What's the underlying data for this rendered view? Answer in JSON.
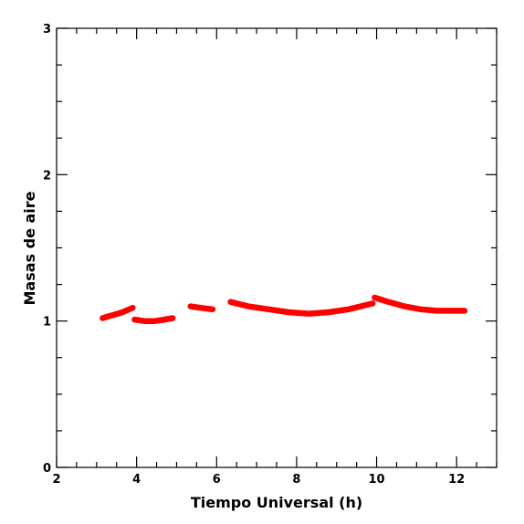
{
  "chart_data": {
    "type": "line",
    "title": "",
    "xlabel": "Tiempo Universal (h)",
    "ylabel": "Masas de aire",
    "xlim": [
      2,
      13
    ],
    "ylim": [
      0,
      3
    ],
    "x_ticks": [
      2,
      4,
      6,
      8,
      10,
      12
    ],
    "y_ticks": [
      0,
      1,
      2,
      3
    ],
    "x_minor_step": 0.5,
    "y_minor_step": 0.25,
    "grid": false,
    "legend": "none",
    "color": "#ff0000",
    "series": [
      {
        "points": [
          [
            3.15,
            1.02
          ],
          [
            3.4,
            1.04
          ],
          [
            3.65,
            1.06
          ],
          [
            3.9,
            1.09
          ]
        ]
      },
      {
        "points": [
          [
            3.95,
            1.01
          ],
          [
            4.2,
            1.0
          ],
          [
            4.45,
            1.0
          ],
          [
            4.7,
            1.01
          ],
          [
            4.9,
            1.02
          ]
        ]
      },
      {
        "points": [
          [
            5.35,
            1.1
          ],
          [
            5.6,
            1.09
          ],
          [
            5.9,
            1.08
          ]
        ]
      },
      {
        "points": [
          [
            6.35,
            1.13
          ],
          [
            6.8,
            1.1
          ],
          [
            7.3,
            1.08
          ],
          [
            7.8,
            1.06
          ],
          [
            8.3,
            1.05
          ],
          [
            8.8,
            1.06
          ],
          [
            9.3,
            1.08
          ],
          [
            9.9,
            1.12
          ]
        ]
      },
      {
        "points": [
          [
            9.95,
            1.16
          ],
          [
            10.3,
            1.13
          ],
          [
            10.7,
            1.1
          ],
          [
            11.1,
            1.08
          ],
          [
            11.5,
            1.07
          ],
          [
            11.9,
            1.07
          ],
          [
            12.2,
            1.07
          ]
        ]
      }
    ]
  }
}
